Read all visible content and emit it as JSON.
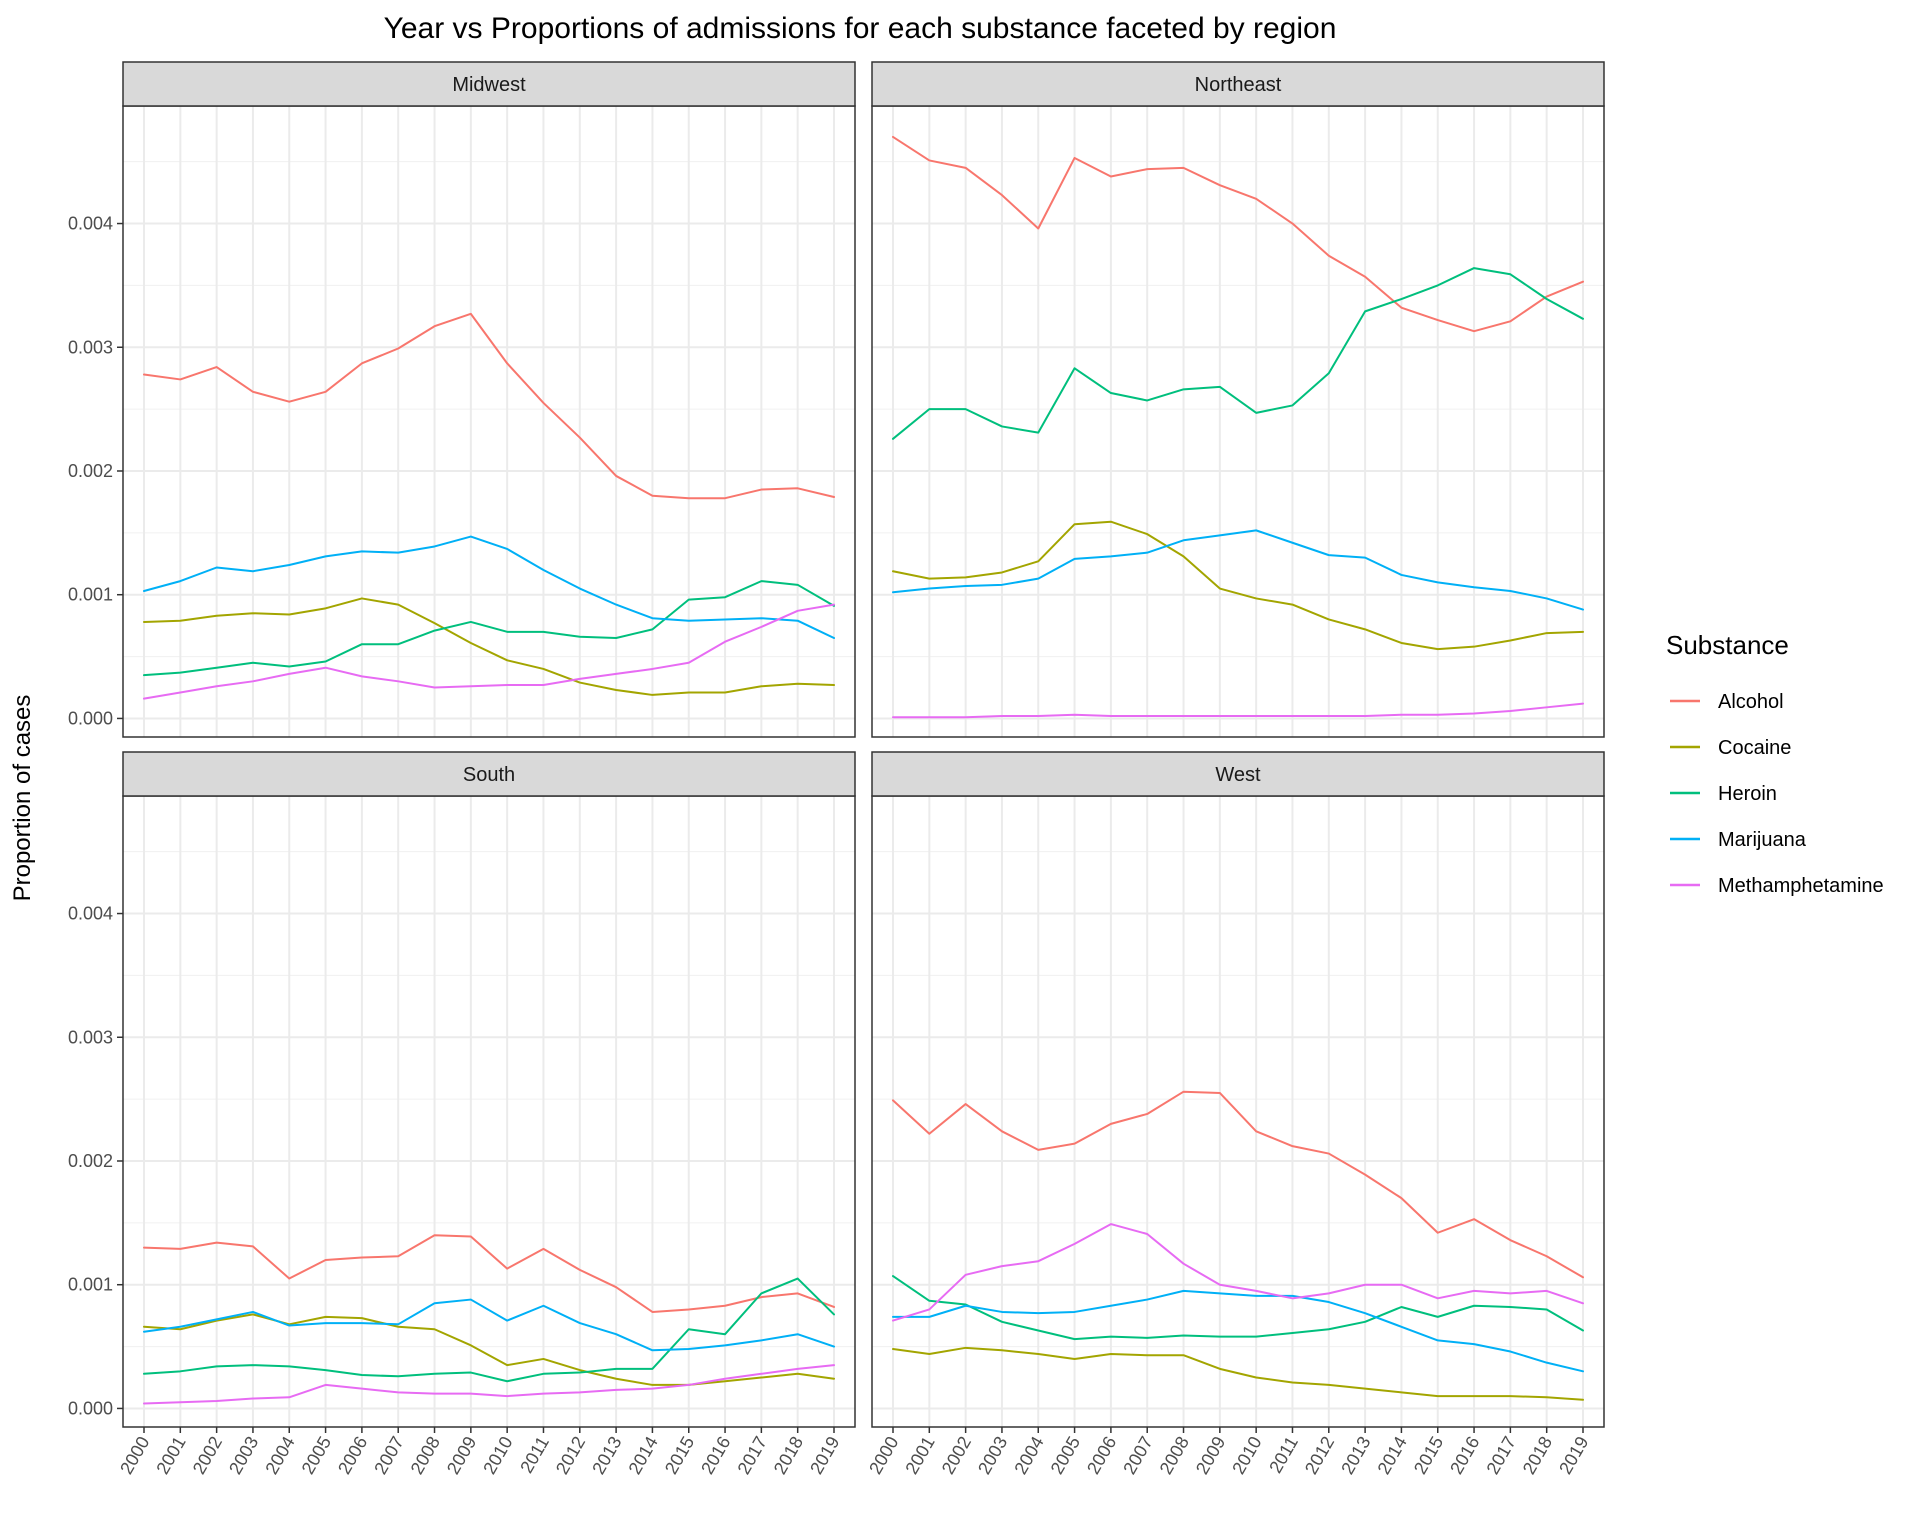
{
  "chart_data": {
    "type": "line",
    "title": "Year vs Proportions of admissions for each substance faceted by region",
    "xlabel": "",
    "ylabel": "Proportion of cases",
    "ylim": [
      -0.00015,
      0.00495
    ],
    "y_ticks": [
      "0.000",
      "0.001",
      "0.002",
      "0.003",
      "0.004"
    ],
    "y_tick_values": [
      0,
      0.001,
      0.002,
      0.003,
      0.004
    ],
    "x": [
      "2000",
      "2001",
      "2002",
      "2003",
      "2004",
      "2005",
      "2006",
      "2007",
      "2008",
      "2009",
      "2010",
      "2011",
      "2012",
      "2013",
      "2014",
      "2015",
      "2016",
      "2017",
      "2018",
      "2019"
    ],
    "grid": true,
    "legend": {
      "title": "Substance",
      "position": "right"
    },
    "series_colors": {
      "Alcohol": "#F8766D",
      "Cocaine": "#A3A500",
      "Heroin": "#00BF7D",
      "Marijuana": "#00B0F6",
      "Methamphetamine": "#E76BF3"
    },
    "facets": [
      {
        "name": "Midwest",
        "series": [
          {
            "name": "Alcohol",
            "values": [
              0.00278,
              0.00274,
              0.00284,
              0.00264,
              0.00256,
              0.00264,
              0.00287,
              0.00299,
              0.00317,
              0.00327,
              0.00287,
              0.00255,
              0.00227,
              0.00196,
              0.0018,
              0.00178,
              0.00178,
              0.00185,
              0.00186,
              0.00179
            ]
          },
          {
            "name": "Cocaine",
            "values": [
              0.00078,
              0.00079,
              0.00083,
              0.00085,
              0.00084,
              0.00089,
              0.00097,
              0.00092,
              0.00077,
              0.00061,
              0.00047,
              0.0004,
              0.00029,
              0.00023,
              0.00019,
              0.00021,
              0.00021,
              0.00026,
              0.00028,
              0.00027
            ]
          },
          {
            "name": "Heroin",
            "values": [
              0.00035,
              0.00037,
              0.00041,
              0.00045,
              0.00042,
              0.00046,
              0.0006,
              0.0006,
              0.00071,
              0.00078,
              0.0007,
              0.0007,
              0.00066,
              0.00065,
              0.00072,
              0.00096,
              0.00098,
              0.00111,
              0.00108,
              0.00091
            ]
          },
          {
            "name": "Marijuana",
            "values": [
              0.00103,
              0.00111,
              0.00122,
              0.00119,
              0.00124,
              0.00131,
              0.00135,
              0.00134,
              0.00139,
              0.00147,
              0.00137,
              0.0012,
              0.00105,
              0.00092,
              0.00081,
              0.00079,
              0.0008,
              0.00081,
              0.00079,
              0.00065
            ]
          },
          {
            "name": "Methamphetamine",
            "values": [
              0.00016,
              0.00021,
              0.00026,
              0.0003,
              0.00036,
              0.00041,
              0.00034,
              0.0003,
              0.00025,
              0.00026,
              0.00027,
              0.00027,
              0.00032,
              0.00036,
              0.0004,
              0.00045,
              0.00062,
              0.00074,
              0.00087,
              0.00092
            ]
          }
        ]
      },
      {
        "name": "Northeast",
        "series": [
          {
            "name": "Alcohol",
            "values": [
              0.0047,
              0.00451,
              0.00445,
              0.00423,
              0.00396,
              0.00453,
              0.00438,
              0.00444,
              0.00445,
              0.00431,
              0.0042,
              0.004,
              0.00374,
              0.00357,
              0.00332,
              0.00322,
              0.00313,
              0.00321,
              0.00341,
              0.00353
            ]
          },
          {
            "name": "Cocaine",
            "values": [
              0.00119,
              0.00113,
              0.00114,
              0.00118,
              0.00127,
              0.00157,
              0.00159,
              0.00149,
              0.00131,
              0.00105,
              0.00097,
              0.00092,
              0.0008,
              0.00072,
              0.00061,
              0.00056,
              0.00058,
              0.00063,
              0.00069,
              0.0007
            ]
          },
          {
            "name": "Heroin",
            "values": [
              0.00226,
              0.0025,
              0.0025,
              0.00236,
              0.00231,
              0.00283,
              0.00263,
              0.00257,
              0.00266,
              0.00268,
              0.00247,
              0.00253,
              0.00279,
              0.00329,
              0.00339,
              0.0035,
              0.00364,
              0.00359,
              0.00339,
              0.00323
            ]
          },
          {
            "name": "Marijuana",
            "values": [
              0.00102,
              0.00105,
              0.00107,
              0.00108,
              0.00113,
              0.00129,
              0.00131,
              0.00134,
              0.00144,
              0.00148,
              0.00152,
              0.00142,
              0.00132,
              0.0013,
              0.00116,
              0.0011,
              0.00106,
              0.00103,
              0.00097,
              0.00088
            ]
          },
          {
            "name": "Methamphetamine",
            "values": [
              1e-05,
              1e-05,
              1e-05,
              2e-05,
              2e-05,
              3e-05,
              2e-05,
              2e-05,
              2e-05,
              2e-05,
              2e-05,
              2e-05,
              2e-05,
              2e-05,
              3e-05,
              3e-05,
              4e-05,
              6e-05,
              9e-05,
              0.00012
            ]
          }
        ]
      },
      {
        "name": "South",
        "series": [
          {
            "name": "Alcohol",
            "values": [
              0.0013,
              0.00129,
              0.00134,
              0.00131,
              0.00105,
              0.0012,
              0.00122,
              0.00123,
              0.0014,
              0.00139,
              0.00113,
              0.00129,
              0.00112,
              0.00098,
              0.00078,
              0.0008,
              0.00083,
              0.0009,
              0.00093,
              0.00082
            ]
          },
          {
            "name": "Cocaine",
            "values": [
              0.00066,
              0.00064,
              0.00071,
              0.00076,
              0.00068,
              0.00074,
              0.00073,
              0.00066,
              0.00064,
              0.00051,
              0.00035,
              0.0004,
              0.00031,
              0.00024,
              0.00019,
              0.00019,
              0.00022,
              0.00025,
              0.00028,
              0.00024
            ]
          },
          {
            "name": "Heroin",
            "values": [
              0.00028,
              0.0003,
              0.00034,
              0.00035,
              0.00034,
              0.00031,
              0.00027,
              0.00026,
              0.00028,
              0.00029,
              0.00022,
              0.00028,
              0.00029,
              0.00032,
              0.00032,
              0.00064,
              0.0006,
              0.00093,
              0.00105,
              0.00076
            ]
          },
          {
            "name": "Marijuana",
            "values": [
              0.00062,
              0.00066,
              0.00072,
              0.00078,
              0.00067,
              0.00069,
              0.00069,
              0.00068,
              0.00085,
              0.00088,
              0.00071,
              0.00083,
              0.00069,
              0.0006,
              0.00047,
              0.00048,
              0.00051,
              0.00055,
              0.0006,
              0.0005
            ]
          },
          {
            "name": "Methamphetamine",
            "values": [
              4e-05,
              5e-05,
              6e-05,
              8e-05,
              9e-05,
              0.00019,
              0.00016,
              0.00013,
              0.00012,
              0.00012,
              0.0001,
              0.00012,
              0.00013,
              0.00015,
              0.00016,
              0.00019,
              0.00024,
              0.00028,
              0.00032,
              0.00035
            ]
          }
        ]
      },
      {
        "name": "West",
        "series": [
          {
            "name": "Alcohol",
            "values": [
              0.00249,
              0.00222,
              0.00246,
              0.00224,
              0.00209,
              0.00214,
              0.0023,
              0.00238,
              0.00256,
              0.00255,
              0.00224,
              0.00212,
              0.00206,
              0.00189,
              0.0017,
              0.00142,
              0.00153,
              0.00136,
              0.00123,
              0.00106
            ]
          },
          {
            "name": "Cocaine",
            "values": [
              0.00048,
              0.00044,
              0.00049,
              0.00047,
              0.00044,
              0.0004,
              0.00044,
              0.00043,
              0.00043,
              0.00032,
              0.00025,
              0.00021,
              0.00019,
              0.00016,
              0.00013,
              0.0001,
              0.0001,
              0.0001,
              9e-05,
              7e-05
            ]
          },
          {
            "name": "Heroin",
            "values": [
              0.00107,
              0.00087,
              0.00084,
              0.0007,
              0.00063,
              0.00056,
              0.00058,
              0.00057,
              0.00059,
              0.00058,
              0.00058,
              0.00061,
              0.00064,
              0.0007,
              0.00082,
              0.00074,
              0.00083,
              0.00082,
              0.0008,
              0.00063
            ]
          },
          {
            "name": "Marijuana",
            "values": [
              0.00074,
              0.00074,
              0.00083,
              0.00078,
              0.00077,
              0.00078,
              0.00083,
              0.00088,
              0.00095,
              0.00093,
              0.00091,
              0.00091,
              0.00086,
              0.00077,
              0.00066,
              0.00055,
              0.00052,
              0.00046,
              0.00037,
              0.0003
            ]
          },
          {
            "name": "Methamphetamine",
            "values": [
              0.00071,
              0.0008,
              0.00108,
              0.00115,
              0.00119,
              0.00133,
              0.00149,
              0.00141,
              0.00117,
              0.001,
              0.00095,
              0.00089,
              0.00093,
              0.001,
              0.001,
              0.00089,
              0.00095,
              0.00093,
              0.00095,
              0.00085
            ]
          }
        ]
      }
    ]
  }
}
